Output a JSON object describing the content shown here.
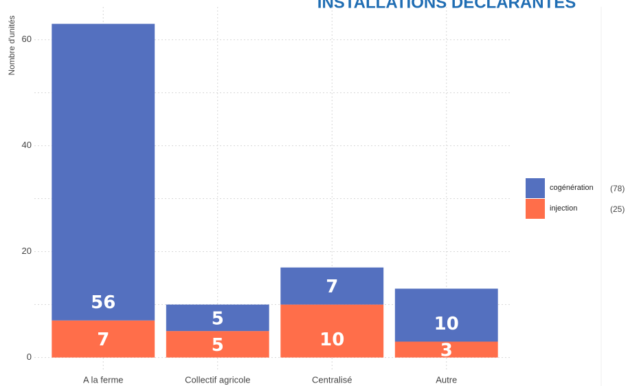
{
  "chart_data": {
    "type": "stacked_bar",
    "title": "INSTALLATIONS DÉCLARANTES",
    "y_label": "Nombre d'unités",
    "categories": [
      "A la ferme",
      "Collectif agricole",
      "Centralisé",
      "Autre"
    ],
    "series": [
      {
        "name": "injection",
        "color": "#ff6e4a",
        "values": [
          7,
          5,
          10,
          3
        ],
        "count_label": "(25)"
      },
      {
        "name": "cogénération",
        "color": "#5470bf",
        "values": [
          56,
          5,
          7,
          10
        ],
        "count_label": "(78)"
      }
    ],
    "ylim": [
      -2,
      67.5
    ],
    "yticks": [
      0,
      20,
      40,
      60
    ],
    "minor_yticks": [
      10,
      30,
      50
    ],
    "grid": true,
    "legend": "right"
  }
}
